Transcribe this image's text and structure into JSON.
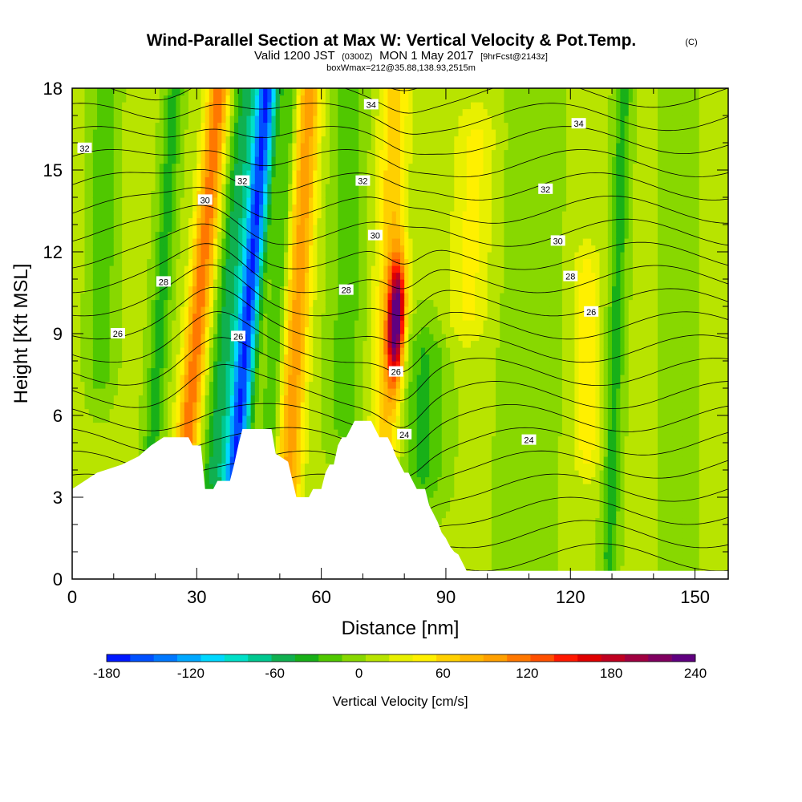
{
  "chart_data": {
    "type": "heatmap",
    "title": "Wind-Parallel Section at Max W: Vertical Velocity & Pot.Temp.",
    "title_suffix": "(C)",
    "subtitle": {
      "prefix": "Valid 1200 JST",
      "utc": "(0300Z)",
      "date": "MON 1 May 2017",
      "forecast": "[9hrFcst@2143z]"
    },
    "box_info": "boxWmax=212@35.88,138.93,2515m",
    "xlabel": "Distance [nm]",
    "ylabel": "Height [Kft MSL]",
    "xlim": [
      0,
      158
    ],
    "ylim": [
      0,
      18
    ],
    "xticks": [
      "0",
      "30",
      "60",
      "90",
      "120",
      "150"
    ],
    "yticks": [
      "0",
      "3",
      "6",
      "9",
      "12",
      "15",
      "18"
    ],
    "colorbar": {
      "title": "Vertical Velocity [cm/s]",
      "tick_labels": [
        "-180",
        "-120",
        "-60",
        "0",
        "60",
        "120",
        "180",
        "240"
      ],
      "range": [
        -180,
        240
      ],
      "colors": [
        "#0018ff",
        "#0050ff",
        "#0078ff",
        "#00a8ff",
        "#00d8ff",
        "#00e0c8",
        "#00c890",
        "#10b050",
        "#18b018",
        "#50c800",
        "#88d800",
        "#b8e400",
        "#e8f000",
        "#fff000",
        "#ffd000",
        "#ffb800",
        "#ffa000",
        "#ff7800",
        "#ff5000",
        "#ff1800",
        "#e00000",
        "#c00020",
        "#a00040",
        "#800060",
        "#600080"
      ]
    },
    "features": [
      {
        "name": "downdraft",
        "center_x": 42,
        "value": -170
      },
      {
        "name": "updraft",
        "center_x": 78,
        "value": 212
      },
      {
        "name": "updraft",
        "center_x": 30,
        "value": 110
      },
      {
        "name": "updraft",
        "center_x": 54,
        "value": 90
      }
    ],
    "terrain": [
      [
        0,
        3.3
      ],
      [
        3,
        3.6
      ],
      [
        6,
        3.9
      ],
      [
        12,
        4.2
      ],
      [
        16,
        4.5
      ],
      [
        19,
        4.9
      ],
      [
        22,
        5.2
      ],
      [
        28,
        5.2
      ],
      [
        29,
        4.9
      ],
      [
        30,
        4.9
      ],
      [
        31,
        4.9
      ],
      [
        32,
        3.3
      ],
      [
        34,
        3.3
      ],
      [
        35,
        3.6
      ],
      [
        38,
        3.6
      ],
      [
        39,
        4.2
      ],
      [
        40,
        4.9
      ],
      [
        41,
        5.5
      ],
      [
        48,
        5.5
      ],
      [
        49,
        4.6
      ],
      [
        52,
        4.3
      ],
      [
        54,
        3.0
      ],
      [
        57,
        3.0
      ],
      [
        58,
        3.3
      ],
      [
        60,
        3.3
      ],
      [
        61,
        3.9
      ],
      [
        62,
        4.2
      ],
      [
        63,
        4.2
      ],
      [
        64,
        4.9
      ],
      [
        65,
        5.2
      ],
      [
        66,
        5.2
      ],
      [
        68,
        5.8
      ],
      [
        72,
        5.8
      ],
      [
        73,
        5.5
      ],
      [
        74,
        5.2
      ],
      [
        76,
        5.2
      ],
      [
        77,
        4.9
      ],
      [
        78,
        4.5
      ],
      [
        79,
        4.2
      ],
      [
        80,
        3.9
      ],
      [
        81,
        3.9
      ],
      [
        82,
        3.6
      ],
      [
        83,
        3.3
      ],
      [
        85,
        3.3
      ],
      [
        86,
        2.7
      ],
      [
        87,
        2.4
      ],
      [
        88,
        2.1
      ],
      [
        89,
        1.7
      ],
      [
        90,
        1.5
      ],
      [
        91,
        1.2
      ],
      [
        92,
        1.0
      ],
      [
        93,
        0.9
      ],
      [
        94,
        0.6
      ],
      [
        95,
        0.3
      ],
      [
        97,
        0.3
      ],
      [
        100,
        0.3
      ],
      [
        158,
        0.3
      ]
    ],
    "contour_labels": [
      {
        "text": "32",
        "x": 3,
        "y": 15.8
      },
      {
        "text": "30",
        "x": 32,
        "y": 13.9
      },
      {
        "text": "28",
        "x": 22,
        "y": 10.9
      },
      {
        "text": "26",
        "x": 11,
        "y": 9.0
      },
      {
        "text": "26",
        "x": 40,
        "y": 8.9
      },
      {
        "text": "32",
        "x": 41,
        "y": 14.6
      },
      {
        "text": "34",
        "x": 72,
        "y": 17.4
      },
      {
        "text": "32",
        "x": 70,
        "y": 14.6
      },
      {
        "text": "30",
        "x": 73,
        "y": 12.6
      },
      {
        "text": "28",
        "x": 66,
        "y": 10.6
      },
      {
        "text": "26",
        "x": 78,
        "y": 7.6
      },
      {
        "text": "24",
        "x": 80,
        "y": 5.3
      },
      {
        "text": "34",
        "x": 122,
        "y": 16.7
      },
      {
        "text": "32",
        "x": 114,
        "y": 14.3
      },
      {
        "text": "30",
        "x": 117,
        "y": 12.4
      },
      {
        "text": "28",
        "x": 120,
        "y": 11.1
      },
      {
        "text": "26",
        "x": 125,
        "y": 9.8
      },
      {
        "text": "24",
        "x": 110,
        "y": 5.1
      }
    ]
  }
}
